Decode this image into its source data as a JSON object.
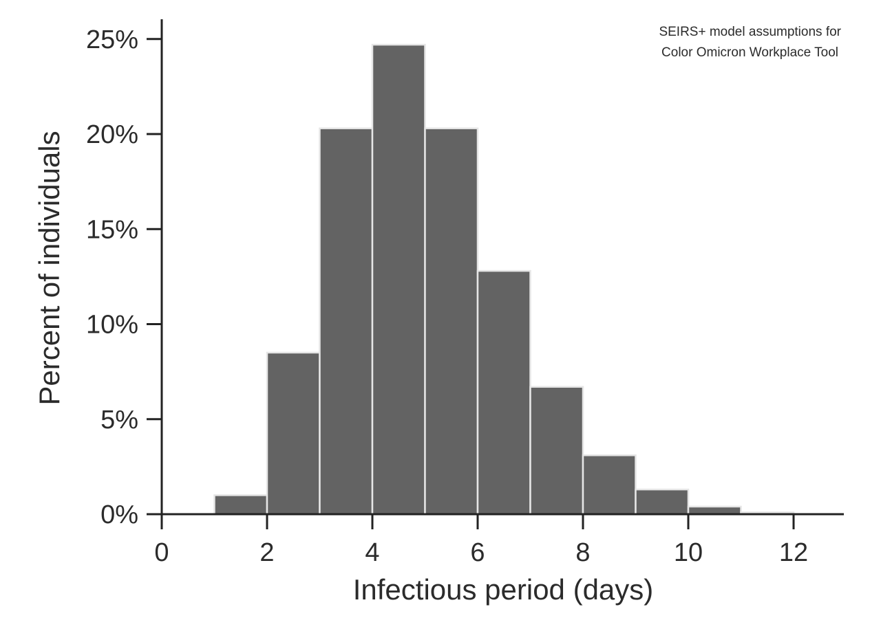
{
  "chart_data": {
    "type": "bar",
    "subtype": "histogram",
    "title": "",
    "annotation": [
      "SEIRS+ model assumptions for",
      "Color Omicron Workplace Tool"
    ],
    "xlabel": "Infectious period (days)",
    "ylabel": "Percent of individuals",
    "xlim": [
      0,
      13
    ],
    "ylim": [
      0,
      25
    ],
    "x_ticks": [
      0,
      2,
      4,
      6,
      8,
      10,
      12
    ],
    "y_ticks": [
      0,
      5,
      10,
      15,
      20,
      25
    ],
    "y_tick_suffix": "%",
    "bins": [
      {
        "x0": 1,
        "x1": 2,
        "value": 1.0
      },
      {
        "x0": 2,
        "x1": 3,
        "value": 8.5
      },
      {
        "x0": 3,
        "x1": 4,
        "value": 20.3
      },
      {
        "x0": 4,
        "x1": 5,
        "value": 24.7
      },
      {
        "x0": 5,
        "x1": 6,
        "value": 20.3
      },
      {
        "x0": 6,
        "x1": 7,
        "value": 12.8
      },
      {
        "x0": 7,
        "x1": 8,
        "value": 6.7
      },
      {
        "x0": 8,
        "x1": 9,
        "value": 3.1
      },
      {
        "x0": 9,
        "x1": 10,
        "value": 1.3
      },
      {
        "x0": 10,
        "x1": 11,
        "value": 0.4
      },
      {
        "x0": 11,
        "x1": 12,
        "value": 0.1
      }
    ],
    "bar_color": "#636363",
    "bar_edge_color": "#e6e6e6",
    "axis_color": "#222222",
    "text_color": "#2b2b2b",
    "grid": false,
    "legend": "none"
  }
}
